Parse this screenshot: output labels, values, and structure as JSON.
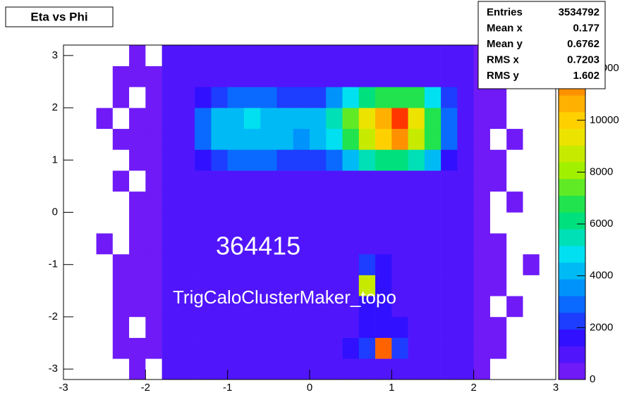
{
  "chart_data": {
    "type": "heatmap",
    "title": "Eta vs Phi",
    "annotations": [
      "364415",
      "TrigCaloClusterMaker_topo"
    ],
    "stats": [
      {
        "label": "Entries",
        "value": 3534792
      },
      {
        "label": "Mean x",
        "value": 0.177
      },
      {
        "label": "Mean y",
        "value": 0.6762
      },
      {
        "label": "RMS x",
        "value": 0.7203
      },
      {
        "label": "RMS y",
        "value": 1.602
      }
    ],
    "x_edges": [
      -3,
      -2.8,
      -2.6,
      -2.4,
      -2.2,
      -2,
      -1.8,
      -1.6,
      -1.4,
      -1.2,
      -1,
      -0.8,
      -0.6,
      -0.4,
      -0.2,
      0,
      0.2,
      0.4,
      0.6,
      0.8,
      1,
      1.2,
      1.4,
      1.6,
      1.8,
      2,
      2.2,
      2.4,
      2.6,
      2.8,
      3
    ],
    "y_edges": [
      -3.2,
      -2.8,
      -2.4,
      -2,
      -1.6,
      -1.2,
      -0.8,
      -0.4,
      0,
      0.4,
      0.8,
      1.2,
      1.6,
      2,
      2.4,
      2.8,
      3.2
    ],
    "z": [
      [
        0,
        0,
        0,
        0,
        100,
        0,
        700,
        700,
        800,
        800,
        800,
        800,
        800,
        800,
        900,
        900,
        900,
        900,
        1000,
        1000,
        900,
        900,
        800,
        700,
        700,
        100,
        0,
        0,
        0,
        0
      ],
      [
        0,
        0,
        0,
        100,
        100,
        100,
        700,
        800,
        900,
        900,
        900,
        900,
        900,
        900,
        1000,
        1100,
        1200,
        1500,
        2000,
        12000,
        2000,
        1100,
        900,
        800,
        700,
        100,
        100,
        0,
        0,
        0
      ],
      [
        0,
        0,
        0,
        100,
        0,
        100,
        700,
        800,
        900,
        900,
        900,
        900,
        900,
        900,
        1000,
        1100,
        1100,
        1200,
        1500,
        1600,
        1400,
        1000,
        900,
        800,
        700,
        100,
        100,
        0,
        0,
        0
      ],
      [
        0,
        0,
        0,
        100,
        100,
        100,
        700,
        800,
        900,
        900,
        900,
        900,
        1000,
        1000,
        1000,
        1100,
        1100,
        1200,
        1300,
        1300,
        1200,
        1000,
        900,
        800,
        700,
        100,
        0,
        100,
        0,
        0
      ],
      [
        0,
        0,
        0,
        100,
        100,
        100,
        700,
        800,
        900,
        1000,
        1000,
        1000,
        1000,
        1000,
        1000,
        1100,
        1100,
        1200,
        9000,
        1300,
        1200,
        1000,
        900,
        800,
        700,
        100,
        100,
        0,
        0,
        0
      ],
      [
        0,
        0,
        0,
        100,
        100,
        100,
        700,
        800,
        900,
        1000,
        1000,
        1000,
        1000,
        1000,
        1000,
        1100,
        1100,
        1200,
        2000,
        1300,
        1200,
        1000,
        900,
        800,
        700,
        100,
        100,
        0,
        100,
        0
      ],
      [
        0,
        0,
        100,
        0,
        100,
        100,
        700,
        800,
        900,
        900,
        900,
        900,
        900,
        900,
        900,
        1000,
        1000,
        1000,
        1100,
        1100,
        1000,
        900,
        800,
        800,
        700,
        100,
        100,
        0,
        0,
        0
      ],
      [
        0,
        0,
        0,
        0,
        100,
        100,
        700,
        800,
        800,
        800,
        800,
        800,
        800,
        900,
        900,
        1000,
        900,
        900,
        1000,
        1000,
        900,
        900,
        800,
        800,
        700,
        100,
        0,
        0,
        0,
        0
      ],
      [
        0,
        0,
        0,
        0,
        100,
        100,
        700,
        800,
        800,
        800,
        800,
        800,
        800,
        800,
        900,
        900,
        900,
        900,
        900,
        900,
        900,
        900,
        800,
        800,
        700,
        100,
        0,
        100,
        0,
        0
      ],
      [
        0,
        0,
        0,
        100,
        0,
        100,
        800,
        900,
        900,
        900,
        900,
        900,
        1000,
        1000,
        1000,
        1000,
        1000,
        1100,
        1200,
        1200,
        1200,
        1100,
        1000,
        900,
        800,
        100,
        100,
        0,
        0,
        0
      ],
      [
        0,
        0,
        0,
        0,
        100,
        100,
        800,
        1000,
        1500,
        2500,
        3000,
        3000,
        2800,
        2500,
        2500,
        2500,
        3000,
        4500,
        5500,
        6000,
        6000,
        5500,
        4000,
        1500,
        900,
        100,
        100,
        0,
        0,
        0
      ],
      [
        0,
        0,
        0,
        100,
        100,
        100,
        900,
        1200,
        3000,
        4000,
        4200,
        4500,
        4300,
        4000,
        3800,
        4000,
        5000,
        7000,
        9000,
        10000,
        11000,
        9000,
        6500,
        2800,
        1000,
        100,
        0,
        100,
        0,
        0
      ],
      [
        0,
        0,
        100,
        0,
        100,
        100,
        900,
        1200,
        3000,
        4500,
        4500,
        4800,
        4500,
        4500,
        4000,
        4000,
        5500,
        7500,
        9500,
        10500,
        12500,
        9500,
        7000,
        3000,
        1000,
        100,
        100,
        0,
        0,
        0
      ],
      [
        0,
        0,
        0,
        100,
        0,
        100,
        800,
        1000,
        1500,
        2500,
        3000,
        3000,
        3000,
        2500,
        2500,
        2500,
        3500,
        5000,
        6000,
        7000,
        7000,
        6500,
        5000,
        2000,
        900,
        100,
        100,
        0,
        0,
        0
      ],
      [
        0,
        0,
        0,
        100,
        100,
        100,
        800,
        800,
        800,
        900,
        900,
        900,
        900,
        900,
        900,
        900,
        900,
        900,
        900,
        900,
        900,
        900,
        900,
        800,
        800,
        100,
        100,
        0,
        0,
        0
      ],
      [
        0,
        0,
        0,
        0,
        100,
        0,
        700,
        700,
        700,
        700,
        700,
        700,
        700,
        700,
        700,
        700,
        700,
        700,
        700,
        700,
        700,
        700,
        700,
        700,
        700,
        100,
        0,
        0,
        0,
        0
      ]
    ],
    "xlim": [
      -3,
      3
    ],
    "xticks": [
      -3,
      -2,
      -1,
      0,
      1,
      2,
      3
    ],
    "ylim": [
      -3.2,
      3.2
    ],
    "yticks": [
      -3,
      -2,
      -1,
      0,
      1,
      2,
      3
    ],
    "zlim": [
      0,
      12900
    ],
    "zticks": [
      0,
      2000,
      4000,
      6000,
      8000,
      10000,
      12000
    ],
    "palette": [
      "#7f1cf5",
      "#3010ff",
      "#0080ff",
      "#00e0f0",
      "#00e060",
      "#a0f000",
      "#ffe000",
      "#ff9000",
      "#ff2000"
    ]
  }
}
